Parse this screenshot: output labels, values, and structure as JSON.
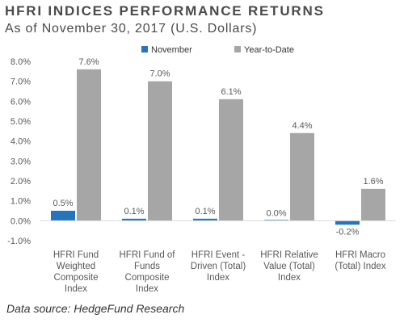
{
  "title": "HFRI INDICES PERFORMANCE RETURNS",
  "subtitle": "As of November 30, 2017 (U.S. Dollars)",
  "source": "Data source: HedgeFund Research",
  "chart_data": {
    "type": "bar",
    "categories": [
      [
        "HFRI Fund",
        "Weighted",
        "Composite",
        "Index"
      ],
      [
        "HFRI Fund of",
        "Funds",
        "Composite",
        "Index"
      ],
      [
        "HFRI Event -",
        "Driven (Total)",
        "Index"
      ],
      [
        "HFRI Relative",
        "Value (Total)",
        "Index"
      ],
      [
        "HFRI Macro",
        "(Total) Index"
      ]
    ],
    "series": [
      {
        "name": "November",
        "color": "#2474be",
        "values": [
          0.5,
          0.1,
          0.1,
          0.0,
          -0.2
        ],
        "labels": [
          "0.5%",
          "0.1%",
          "0.1%",
          "0.0%",
          "-0.2%"
        ]
      },
      {
        "name": "Year-to-Date",
        "color": "#a6a6a6",
        "values": [
          7.6,
          7.0,
          6.1,
          4.4,
          1.6
        ],
        "labels": [
          "7.6%",
          "7.0%",
          "6.1%",
          "4.4%",
          "1.6%"
        ]
      }
    ],
    "yticks": [
      -1.0,
      0.0,
      1.0,
      2.0,
      3.0,
      4.0,
      5.0,
      6.0,
      7.0,
      8.0
    ],
    "ytick_labels": [
      "-1.0%",
      "0.0%",
      "1.0%",
      "2.0%",
      "3.0%",
      "4.0%",
      "5.0%",
      "6.0%",
      "7.0%",
      "8.0%"
    ],
    "ylim": [
      -1.0,
      8.0
    ],
    "legend": "top",
    "grid": false
  }
}
